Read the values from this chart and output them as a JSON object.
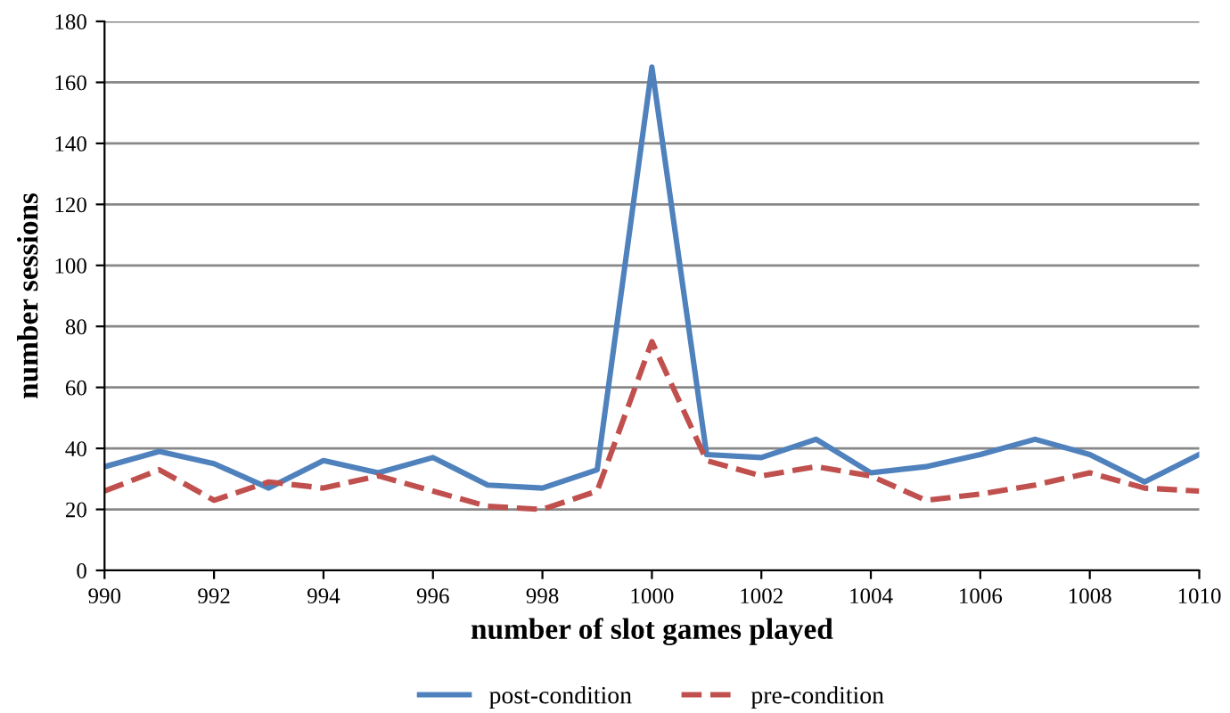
{
  "chart_data": {
    "type": "line",
    "xlabel": "number of slot games played",
    "ylabel": "number sessions",
    "x": [
      990,
      991,
      992,
      993,
      994,
      995,
      996,
      997,
      998,
      999,
      1000,
      1001,
      1002,
      1003,
      1004,
      1005,
      1006,
      1007,
      1008,
      1009,
      1010
    ],
    "series": [
      {
        "name": "post-condition",
        "color": "#4f81bd",
        "line_style": "solid",
        "values": [
          34,
          39,
          35,
          27,
          36,
          32,
          37,
          28,
          27,
          33,
          165,
          38,
          37,
          43,
          32,
          34,
          38,
          43,
          38,
          29,
          38
        ]
      },
      {
        "name": "pre-condition",
        "color": "#c0504d",
        "line_style": "dashed",
        "values": [
          26,
          33,
          23,
          29,
          27,
          31,
          26,
          21,
          20,
          26,
          75,
          36,
          31,
          34,
          31,
          23,
          25,
          28,
          32,
          27,
          26
        ]
      }
    ],
    "xlim": [
      990,
      1010
    ],
    "xticks": [
      990,
      992,
      994,
      996,
      998,
      1000,
      1002,
      1004,
      1006,
      1008,
      1010
    ],
    "ylim": [
      0,
      180
    ],
    "yticks": [
      0,
      20,
      40,
      60,
      80,
      100,
      120,
      140,
      160,
      180
    ],
    "grid": "y",
    "legend": "bottom",
    "marker": "none"
  }
}
